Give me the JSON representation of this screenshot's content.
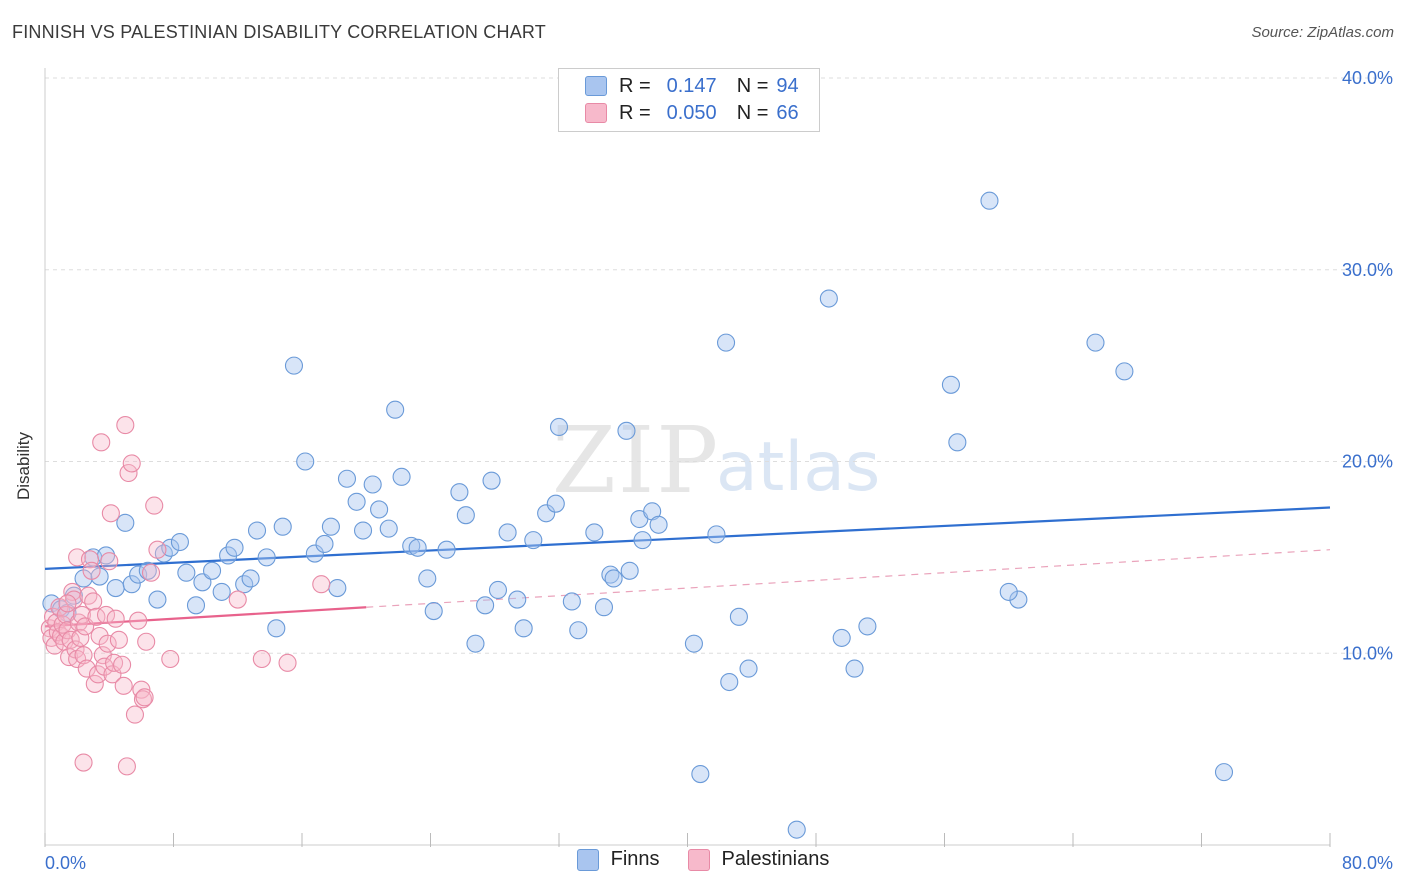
{
  "title": "FINNISH VS PALESTINIAN DISABILITY CORRELATION CHART",
  "source": "Source: ZipAtlas.com",
  "watermark": {
    "zip": "ZIP",
    "atlas": "atlas"
  },
  "legend": [
    {
      "r_label": "R =",
      "r_value": "0.147",
      "n_label": "N =",
      "n_value": "94",
      "color": "#a9c5ef",
      "border": "#6a9ad8"
    },
    {
      "r_label": "R =",
      "r_value": "0.050",
      "n_label": "N =",
      "n_value": "66",
      "color": "#f7b9cb",
      "border": "#e88aa6"
    }
  ],
  "bottom_legend": [
    {
      "label": "Finns",
      "color": "#a9c5ef",
      "border": "#6a9ad8"
    },
    {
      "label": "Palestinians",
      "color": "#f7b9cb",
      "border": "#e88aa6"
    }
  ],
  "chart_data": {
    "type": "scatter",
    "title": "FINNISH VS PALESTINIAN DISABILITY CORRELATION CHART",
    "xlabel": "",
    "ylabel": "Disability",
    "xlim": [
      0,
      80
    ],
    "ylim": [
      0,
      40
    ],
    "x_tick_labels": [
      "0.0%",
      "80.0%"
    ],
    "y_tick_labels": [
      "10.0%",
      "20.0%",
      "30.0%",
      "40.0%"
    ],
    "y_ticks": [
      10,
      20,
      30,
      40
    ],
    "grid": true,
    "legend_position": "top-center",
    "series": [
      {
        "name": "Finns",
        "color": "#6a9ad8",
        "fill": "rgba(169,197,239,0.45)",
        "trend": {
          "x0": 0,
          "y0": 14.4,
          "x1": 80,
          "y1": 17.6,
          "solid_to": 80
        },
        "points": [
          [
            0.4,
            12.6
          ],
          [
            1.0,
            12.3
          ],
          [
            1.4,
            12.1
          ],
          [
            1.8,
            13.0
          ],
          [
            2.4,
            13.9
          ],
          [
            3.0,
            15.0
          ],
          [
            3.4,
            14.0
          ],
          [
            3.8,
            15.1
          ],
          [
            4.4,
            13.4
          ],
          [
            5.0,
            16.8
          ],
          [
            5.4,
            13.6
          ],
          [
            5.8,
            14.1
          ],
          [
            6.4,
            14.3
          ],
          [
            7.0,
            12.8
          ],
          [
            7.4,
            15.2
          ],
          [
            7.8,
            15.5
          ],
          [
            8.4,
            15.8
          ],
          [
            8.8,
            14.2
          ],
          [
            9.4,
            12.5
          ],
          [
            9.8,
            13.7
          ],
          [
            10.4,
            14.3
          ],
          [
            11.0,
            13.2
          ],
          [
            11.4,
            15.1
          ],
          [
            11.8,
            15.5
          ],
          [
            12.4,
            13.6
          ],
          [
            12.8,
            13.9
          ],
          [
            13.2,
            16.4
          ],
          [
            13.8,
            15.0
          ],
          [
            14.4,
            11.3
          ],
          [
            14.8,
            16.6
          ],
          [
            15.5,
            25.0
          ],
          [
            16.2,
            20.0
          ],
          [
            16.8,
            15.2
          ],
          [
            17.4,
            15.7
          ],
          [
            17.8,
            16.6
          ],
          [
            18.2,
            13.4
          ],
          [
            18.8,
            19.1
          ],
          [
            19.4,
            17.9
          ],
          [
            19.8,
            16.4
          ],
          [
            20.4,
            18.8
          ],
          [
            20.8,
            17.5
          ],
          [
            21.4,
            16.5
          ],
          [
            21.8,
            22.7
          ],
          [
            22.2,
            19.2
          ],
          [
            22.8,
            15.6
          ],
          [
            23.2,
            15.5
          ],
          [
            23.8,
            13.9
          ],
          [
            24.2,
            12.2
          ],
          [
            25.0,
            15.4
          ],
          [
            25.8,
            18.4
          ],
          [
            26.2,
            17.2
          ],
          [
            26.8,
            10.5
          ],
          [
            27.4,
            12.5
          ],
          [
            27.8,
            19.0
          ],
          [
            28.2,
            13.3
          ],
          [
            28.8,
            16.3
          ],
          [
            29.4,
            12.8
          ],
          [
            29.8,
            11.3
          ],
          [
            30.4,
            15.9
          ],
          [
            31.2,
            17.3
          ],
          [
            31.8,
            17.8
          ],
          [
            32.0,
            21.8
          ],
          [
            32.8,
            12.7
          ],
          [
            33.2,
            11.2
          ],
          [
            34.2,
            16.3
          ],
          [
            34.8,
            12.4
          ],
          [
            35.2,
            14.1
          ],
          [
            35.4,
            13.9
          ],
          [
            36.2,
            21.6
          ],
          [
            36.4,
            14.3
          ],
          [
            37.0,
            17.0
          ],
          [
            37.2,
            15.9
          ],
          [
            37.8,
            17.4
          ],
          [
            38.2,
            16.7
          ],
          [
            40.4,
            10.5
          ],
          [
            40.8,
            3.7
          ],
          [
            41.8,
            16.2
          ],
          [
            42.4,
            26.2
          ],
          [
            42.6,
            8.5
          ],
          [
            43.2,
            11.9
          ],
          [
            43.8,
            9.2
          ],
          [
            46.8,
            0.8
          ],
          [
            48.8,
            28.5
          ],
          [
            50.4,
            9.2
          ],
          [
            51.2,
            11.4
          ],
          [
            56.4,
            24.0
          ],
          [
            56.8,
            21.0
          ],
          [
            58.8,
            33.6
          ],
          [
            60.6,
            12.8
          ],
          [
            65.4,
            26.2
          ],
          [
            67.2,
            24.7
          ],
          [
            73.4,
            3.8
          ],
          [
            49.6,
            10.8
          ],
          [
            60.0,
            13.2
          ]
        ]
      },
      {
        "name": "Palestinians",
        "color": "#e88aa6",
        "fill": "rgba(247,185,203,0.40)",
        "trend": {
          "x0": 0,
          "y0": 11.4,
          "x1": 80,
          "y1": 15.4,
          "solid_to": 20
        },
        "points": [
          [
            0.3,
            11.3
          ],
          [
            0.4,
            10.8
          ],
          [
            0.5,
            11.9
          ],
          [
            0.6,
            10.4
          ],
          [
            0.7,
            11.6
          ],
          [
            0.8,
            11.1
          ],
          [
            0.9,
            12.4
          ],
          [
            1.0,
            10.9
          ],
          [
            1.1,
            11.5
          ],
          [
            1.2,
            10.6
          ],
          [
            1.3,
            12.0
          ],
          [
            1.4,
            11.2
          ],
          [
            1.5,
            9.8
          ],
          [
            1.6,
            10.7
          ],
          [
            1.7,
            13.2
          ],
          [
            1.8,
            12.8
          ],
          [
            1.9,
            10.2
          ],
          [
            2.0,
            9.7
          ],
          [
            2.0,
            15.0
          ],
          [
            2.1,
            11.6
          ],
          [
            2.2,
            10.8
          ],
          [
            2.3,
            12.0
          ],
          [
            2.4,
            9.9
          ],
          [
            2.5,
            11.4
          ],
          [
            2.6,
            9.2
          ],
          [
            2.7,
            13.0
          ],
          [
            2.8,
            14.9
          ],
          [
            2.9,
            14.3
          ],
          [
            3.0,
            12.7
          ],
          [
            3.1,
            8.4
          ],
          [
            3.2,
            11.9
          ],
          [
            3.3,
            8.9
          ],
          [
            3.4,
            10.9
          ],
          [
            3.5,
            21.0
          ],
          [
            3.6,
            9.9
          ],
          [
            3.7,
            9.3
          ],
          [
            3.8,
            12.0
          ],
          [
            3.9,
            10.5
          ],
          [
            4.0,
            14.8
          ],
          [
            4.1,
            17.3
          ],
          [
            4.2,
            8.9
          ],
          [
            4.3,
            9.5
          ],
          [
            4.4,
            11.8
          ],
          [
            4.6,
            10.7
          ],
          [
            4.8,
            9.4
          ],
          [
            4.9,
            8.3
          ],
          [
            5.0,
            21.9
          ],
          [
            5.1,
            4.1
          ],
          [
            5.2,
            19.4
          ],
          [
            5.4,
            19.9
          ],
          [
            5.6,
            6.8
          ],
          [
            5.8,
            11.7
          ],
          [
            6.0,
            8.1
          ],
          [
            6.1,
            7.6
          ],
          [
            6.2,
            7.7
          ],
          [
            6.3,
            10.6
          ],
          [
            6.6,
            14.2
          ],
          [
            6.8,
            17.7
          ],
          [
            7.0,
            15.4
          ],
          [
            7.8,
            9.7
          ],
          [
            12.0,
            12.8
          ],
          [
            13.5,
            9.7
          ],
          [
            15.1,
            9.5
          ],
          [
            17.2,
            13.6
          ],
          [
            2.4,
            4.3
          ],
          [
            1.4,
            12.6
          ]
        ]
      }
    ]
  }
}
